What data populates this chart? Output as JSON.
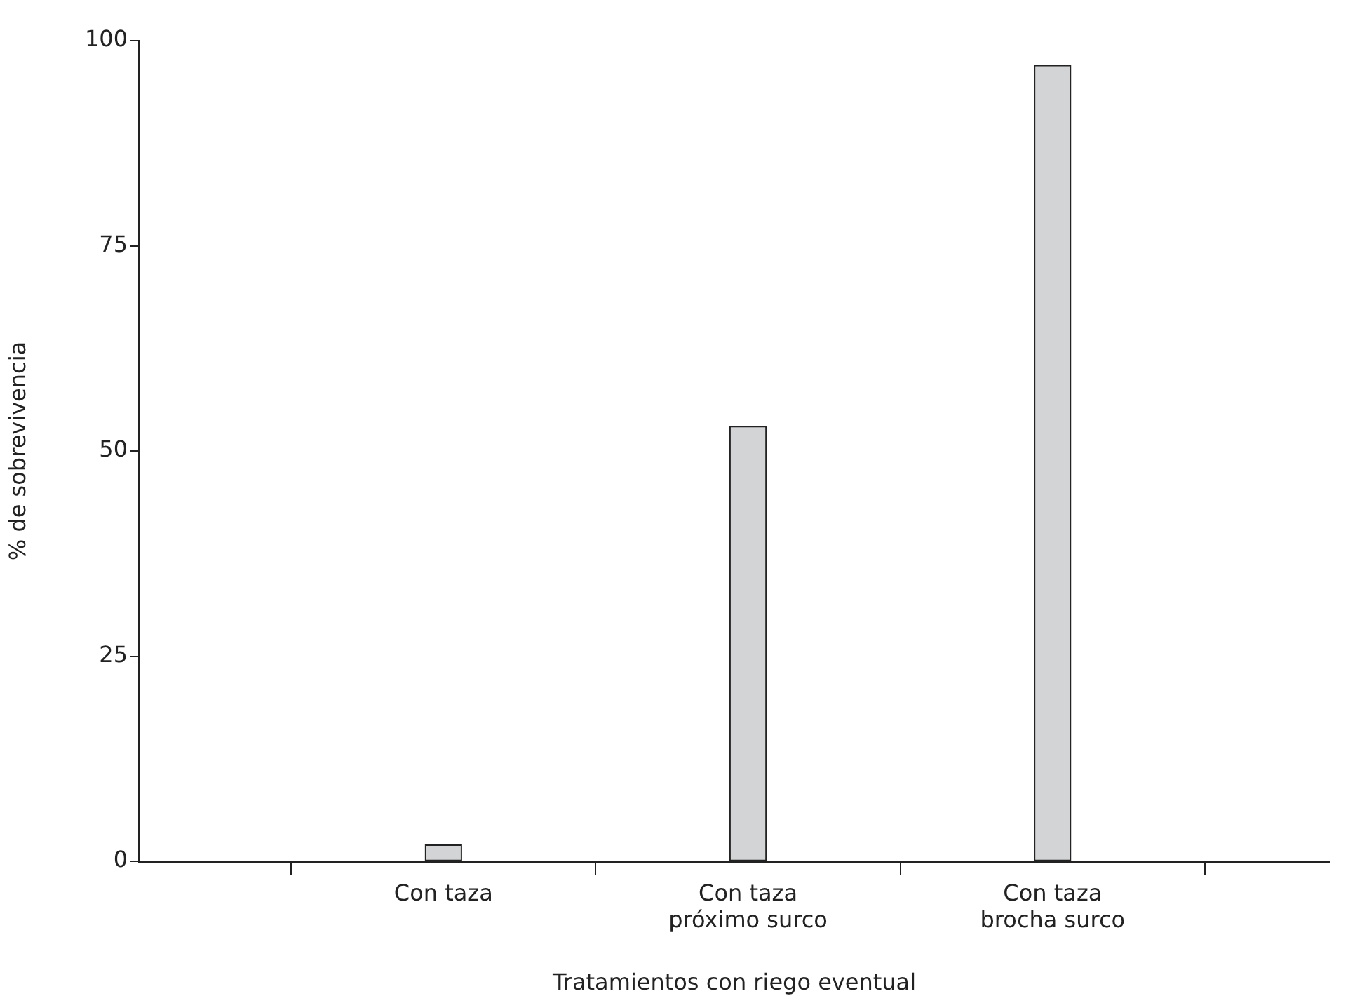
{
  "chart_data": {
    "type": "bar",
    "xlabel": "Tratamientos con riego eventual",
    "ylabel": "% de sobrevivencia",
    "categories": [
      "Con taza",
      "Con taza\npróximo surco",
      "Con taza\nbrocha surco"
    ],
    "values": [
      2,
      53,
      97
    ],
    "color": "#d3d4d6",
    "ylim": [
      0,
      100
    ],
    "yticks": [
      0,
      25,
      50,
      75,
      100
    ],
    "grid": false,
    "legend": false
  }
}
